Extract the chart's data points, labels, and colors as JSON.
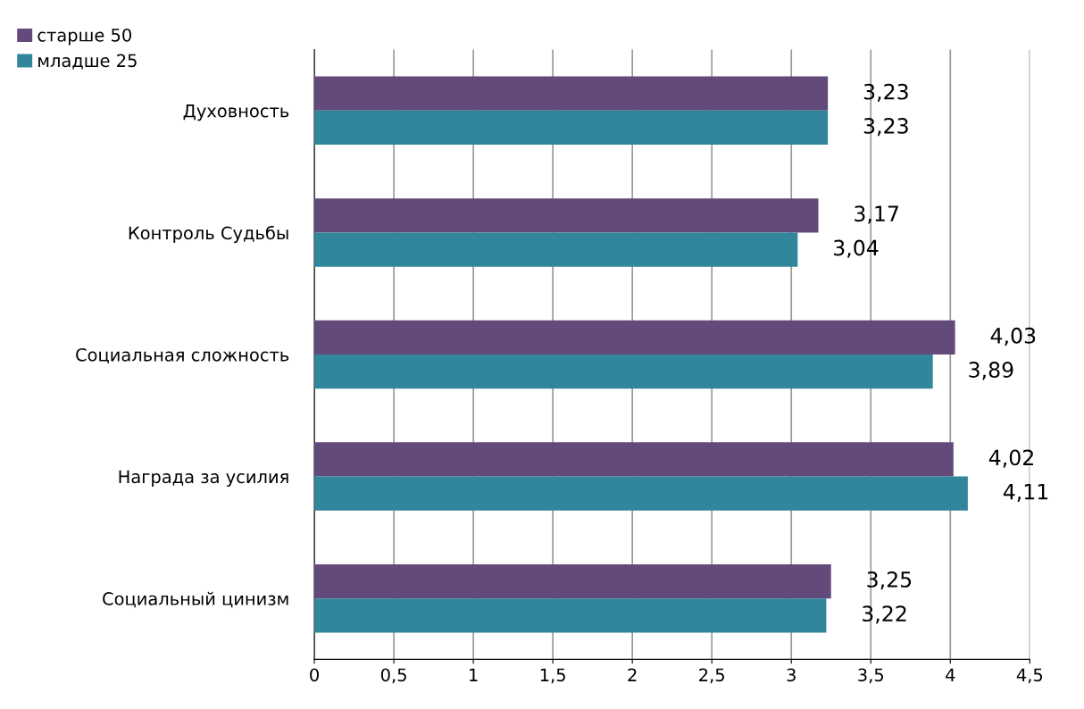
{
  "chart_data": {
    "type": "bar",
    "orientation": "horizontal",
    "categories": [
      "Духовность",
      "Контроль Судьбы",
      "Социальная сложность",
      "Награда за усилия",
      "Социальный цинизм"
    ],
    "series": [
      {
        "name": "старше 50",
        "color": "#624a7a",
        "values": [
          3.23,
          3.17,
          4.03,
          4.02,
          3.25
        ],
        "value_labels": [
          "3,23",
          "3,17",
          "4,03",
          "4,02",
          "3,25"
        ]
      },
      {
        "name": "младше 25",
        "color": "#31869b",
        "values": [
          3.23,
          3.04,
          3.89,
          4.11,
          3.22
        ],
        "value_labels": [
          "3,23",
          "3,04",
          "3,89",
          "4,11",
          "3,22"
        ]
      }
    ],
    "xlim": [
      0,
      4.5
    ],
    "xticks": [
      0,
      {
        "value": 0.5,
        "label": "0,5"
      },
      1,
      {
        "value": 1.5,
        "label": "1,5"
      },
      2,
      {
        "value": 2.5,
        "label": "2,5"
      },
      3,
      {
        "value": 3.5,
        "label": "3,5"
      },
      4,
      {
        "value": 4.5,
        "label": "4,5"
      }
    ],
    "grid": "x",
    "legend": "top left"
  }
}
